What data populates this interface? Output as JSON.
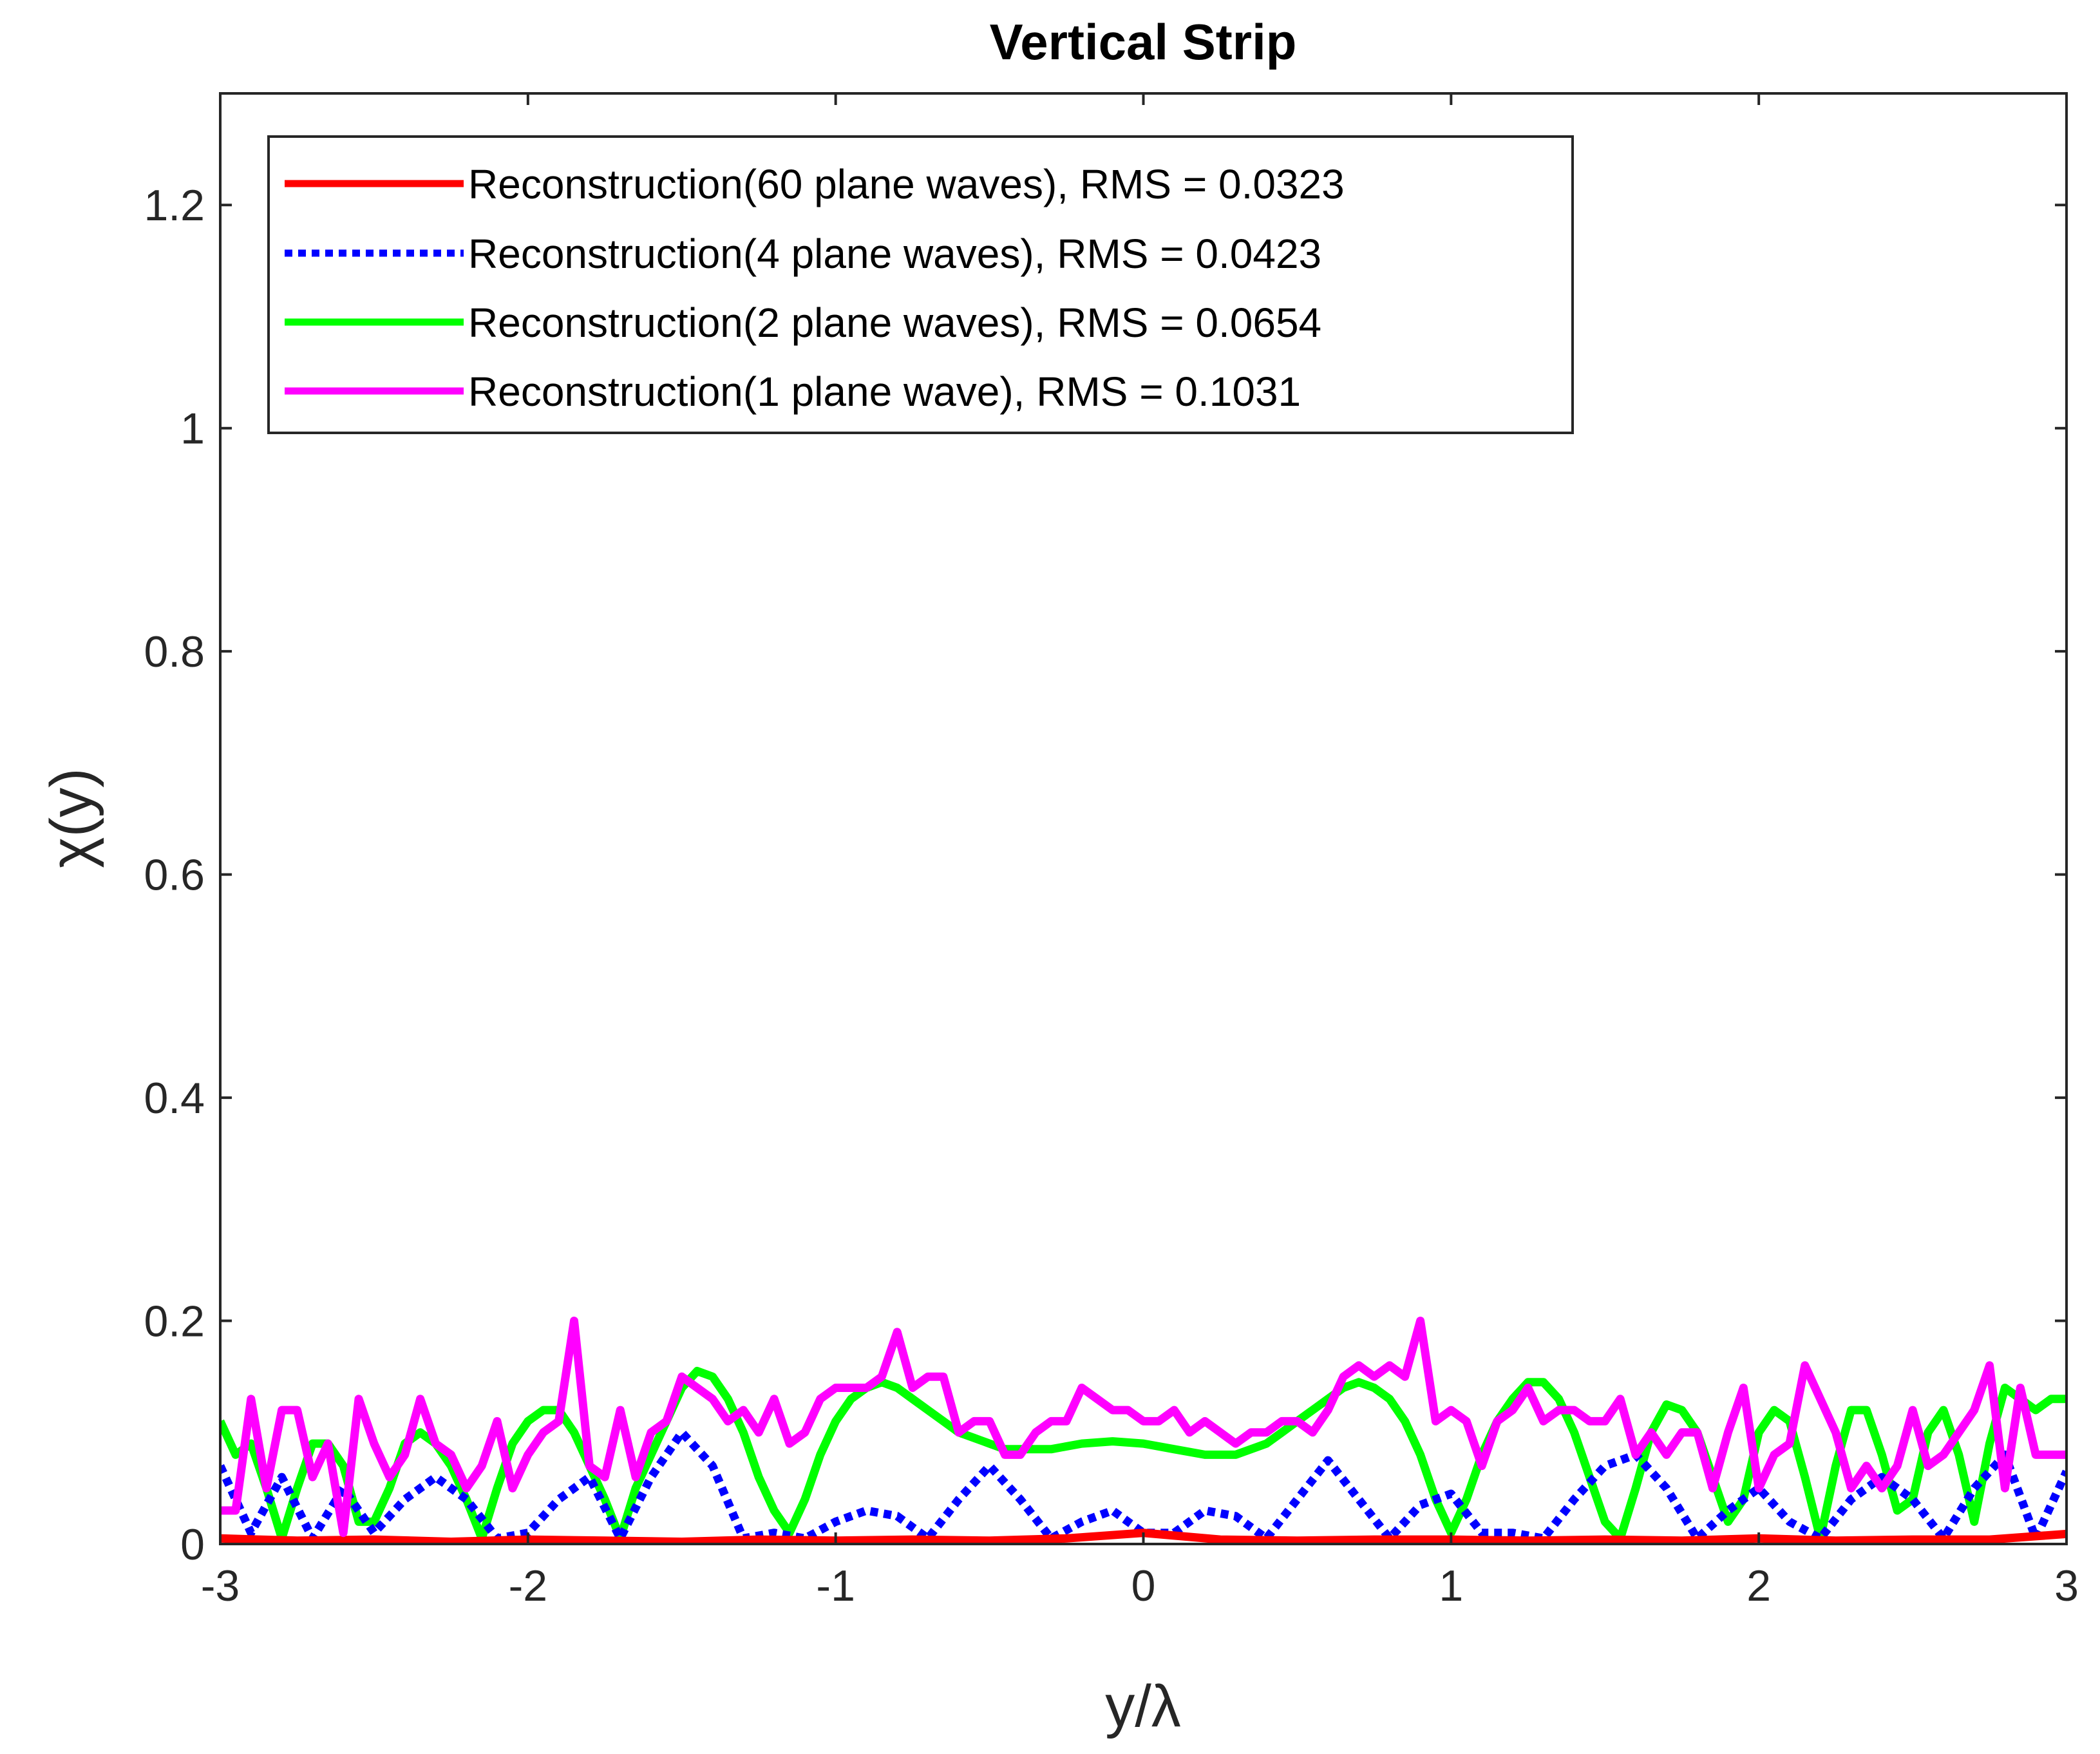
{
  "chart_data": {
    "type": "line",
    "title": "Vertical Strip",
    "xlabel": "y/λ",
    "ylabel": "χ(y)",
    "xlim": [
      -3,
      3
    ],
    "ylim": [
      0,
      1.3
    ],
    "xticks": [
      -3,
      -2,
      -1,
      0,
      1,
      2,
      3
    ],
    "xtick_labels": [
      "-3",
      "-2",
      "-1",
      "0",
      "1",
      "2",
      "3"
    ],
    "yticks": [
      0,
      0.2,
      0.4,
      0.6,
      0.8,
      1,
      1.2
    ],
    "ytick_labels": [
      "0",
      "0.2",
      "0.4",
      "0.6",
      "0.8",
      "1",
      "1.2"
    ],
    "grid": false,
    "legend_position": "top-left",
    "series": [
      {
        "name": "Reconstruction(60 plane waves), RMS = 0.0323",
        "color": "#ff0000",
        "style": "solid",
        "x": [
          -3,
          -2.75,
          -2.5,
          -2.25,
          -2,
          -1.75,
          -1.5,
          -1.25,
          -1,
          -0.75,
          -0.5,
          -0.25,
          0,
          0.25,
          0.5,
          0.75,
          1,
          1.25,
          1.5,
          1.75,
          2,
          2.25,
          2.5,
          2.75,
          3
        ],
        "y": [
          0.005,
          0.003,
          0.004,
          0.002,
          0.004,
          0.003,
          0.002,
          0.004,
          0.003,
          0.004,
          0.003,
          0.005,
          0.01,
          0.004,
          0.003,
          0.004,
          0.004,
          0.003,
          0.004,
          0.003,
          0.005,
          0.003,
          0.004,
          0.004,
          0.009
        ]
      },
      {
        "name": "Reconstruction(4 plane waves), RMS = 0.0423",
        "color": "#0000ff",
        "style": "dotted",
        "x": [
          -3,
          -2.9,
          -2.8,
          -2.7,
          -2.6,
          -2.5,
          -2.4,
          -2.3,
          -2.2,
          -2.1,
          -2.0,
          -1.9,
          -1.8,
          -1.7,
          -1.6,
          -1.5,
          -1.4,
          -1.3,
          -1.2,
          -1.1,
          -1.0,
          -0.9,
          -0.8,
          -0.7,
          -0.6,
          -0.5,
          -0.4,
          -0.3,
          -0.2,
          -0.1,
          0.0,
          0.1,
          0.2,
          0.3,
          0.4,
          0.5,
          0.6,
          0.7,
          0.8,
          0.9,
          1.0,
          1.1,
          1.2,
          1.3,
          1.4,
          1.5,
          1.6,
          1.7,
          1.8,
          1.9,
          2.0,
          2.1,
          2.2,
          2.3,
          2.4,
          2.5,
          2.6,
          2.7,
          2.8,
          2.9,
          3.0
        ],
        "y": [
          0.07,
          0.01,
          0.06,
          0.005,
          0.05,
          0.01,
          0.04,
          0.06,
          0.04,
          0.005,
          0.01,
          0.04,
          0.06,
          0.005,
          0.06,
          0.1,
          0.07,
          0.005,
          0.01,
          0.005,
          0.02,
          0.03,
          0.025,
          0.005,
          0.04,
          0.07,
          0.04,
          0.005,
          0.02,
          0.03,
          0.01,
          0.01,
          0.03,
          0.025,
          0.005,
          0.04,
          0.075,
          0.04,
          0.005,
          0.035,
          0.045,
          0.01,
          0.01,
          0.005,
          0.04,
          0.07,
          0.08,
          0.05,
          0.005,
          0.03,
          0.05,
          0.02,
          0.005,
          0.04,
          0.06,
          0.04,
          0.005,
          0.05,
          0.08,
          0.005,
          0.065
        ]
      },
      {
        "name": "Reconstruction(2 plane waves), RMS = 0.0654",
        "color": "#00ff00",
        "style": "solid",
        "x": [
          -3,
          -2.95,
          -2.9,
          -2.85,
          -2.8,
          -2.75,
          -2.7,
          -2.65,
          -2.6,
          -2.55,
          -2.5,
          -2.45,
          -2.4,
          -2.35,
          -2.3,
          -2.25,
          -2.2,
          -2.15,
          -2.1,
          -2.05,
          -2.0,
          -1.95,
          -1.9,
          -1.85,
          -1.8,
          -1.75,
          -1.7,
          -1.65,
          -1.6,
          -1.55,
          -1.5,
          -1.45,
          -1.4,
          -1.35,
          -1.3,
          -1.25,
          -1.2,
          -1.15,
          -1.1,
          -1.05,
          -1.0,
          -0.95,
          -0.9,
          -0.85,
          -0.8,
          -0.75,
          -0.7,
          -0.65,
          -0.6,
          -0.55,
          -0.5,
          -0.45,
          -0.4,
          -0.35,
          -0.3,
          -0.2,
          -0.1,
          0.0,
          0.1,
          0.2,
          0.3,
          0.35,
          0.4,
          0.45,
          0.5,
          0.55,
          0.6,
          0.65,
          0.7,
          0.75,
          0.8,
          0.85,
          0.9,
          0.95,
          1.0,
          1.05,
          1.1,
          1.15,
          1.2,
          1.25,
          1.3,
          1.35,
          1.4,
          1.45,
          1.5,
          1.55,
          1.6,
          1.65,
          1.7,
          1.75,
          1.8,
          1.85,
          1.9,
          1.95,
          2.0,
          2.05,
          2.1,
          2.15,
          2.2,
          2.25,
          2.3,
          2.35,
          2.4,
          2.45,
          2.5,
          2.55,
          2.6,
          2.65,
          2.7,
          2.75,
          2.8,
          2.85,
          2.9,
          2.95,
          3.0
        ],
        "y": [
          0.11,
          0.08,
          0.09,
          0.05,
          0.005,
          0.05,
          0.09,
          0.09,
          0.07,
          0.02,
          0.02,
          0.05,
          0.09,
          0.1,
          0.09,
          0.07,
          0.04,
          0.005,
          0.05,
          0.09,
          0.11,
          0.12,
          0.12,
          0.1,
          0.07,
          0.04,
          0.005,
          0.05,
          0.08,
          0.11,
          0.14,
          0.155,
          0.15,
          0.13,
          0.1,
          0.06,
          0.03,
          0.01,
          0.04,
          0.08,
          0.11,
          0.13,
          0.14,
          0.145,
          0.14,
          0.13,
          0.12,
          0.11,
          0.1,
          0.095,
          0.09,
          0.085,
          0.085,
          0.085,
          0.085,
          0.09,
          0.092,
          0.09,
          0.085,
          0.08,
          0.08,
          0.085,
          0.09,
          0.1,
          0.11,
          0.12,
          0.13,
          0.14,
          0.145,
          0.14,
          0.13,
          0.11,
          0.08,
          0.04,
          0.01,
          0.04,
          0.08,
          0.11,
          0.13,
          0.145,
          0.145,
          0.13,
          0.1,
          0.06,
          0.02,
          0.005,
          0.05,
          0.1,
          0.125,
          0.12,
          0.1,
          0.06,
          0.02,
          0.04,
          0.1,
          0.12,
          0.11,
          0.06,
          0.005,
          0.07,
          0.12,
          0.12,
          0.08,
          0.03,
          0.04,
          0.1,
          0.12,
          0.08,
          0.02,
          0.09,
          0.14,
          0.13,
          0.12,
          0.13,
          0.13
        ]
      },
      {
        "name": "Reconstruction(1 plane wave), RMS = 0.1031",
        "color": "#ff00ff",
        "style": "solid",
        "x": [
          -3,
          -2.95,
          -2.9,
          -2.85,
          -2.8,
          -2.75,
          -2.7,
          -2.65,
          -2.6,
          -2.55,
          -2.5,
          -2.45,
          -2.4,
          -2.35,
          -2.3,
          -2.25,
          -2.2,
          -2.15,
          -2.1,
          -2.05,
          -2.0,
          -1.95,
          -1.9,
          -1.85,
          -1.8,
          -1.75,
          -1.7,
          -1.65,
          -1.6,
          -1.55,
          -1.5,
          -1.45,
          -1.4,
          -1.35,
          -1.3,
          -1.25,
          -1.2,
          -1.15,
          -1.1,
          -1.05,
          -1.0,
          -0.95,
          -0.9,
          -0.85,
          -0.8,
          -0.75,
          -0.7,
          -0.65,
          -0.6,
          -0.55,
          -0.5,
          -0.45,
          -0.4,
          -0.35,
          -0.3,
          -0.25,
          -0.2,
          -0.15,
          -0.1,
          -0.05,
          0.0,
          0.05,
          0.1,
          0.15,
          0.2,
          0.25,
          0.3,
          0.35,
          0.4,
          0.45,
          0.5,
          0.55,
          0.6,
          0.65,
          0.7,
          0.75,
          0.8,
          0.85,
          0.9,
          0.95,
          1.0,
          1.05,
          1.1,
          1.15,
          1.2,
          1.25,
          1.3,
          1.35,
          1.4,
          1.45,
          1.5,
          1.55,
          1.6,
          1.65,
          1.7,
          1.75,
          1.8,
          1.85,
          1.9,
          1.95,
          2.0,
          2.05,
          2.1,
          2.15,
          2.2,
          2.25,
          2.3,
          2.35,
          2.4,
          2.45,
          2.5,
          2.55,
          2.6,
          2.65,
          2.7,
          2.75,
          2.8,
          2.85,
          2.9,
          2.95,
          3.0
        ],
        "y": [
          0.03,
          0.03,
          0.13,
          0.05,
          0.12,
          0.12,
          0.06,
          0.09,
          0.01,
          0.13,
          0.09,
          0.06,
          0.08,
          0.13,
          0.09,
          0.08,
          0.05,
          0.07,
          0.11,
          0.05,
          0.08,
          0.1,
          0.11,
          0.2,
          0.07,
          0.06,
          0.12,
          0.06,
          0.1,
          0.11,
          0.15,
          0.14,
          0.13,
          0.11,
          0.12,
          0.1,
          0.13,
          0.09,
          0.1,
          0.13,
          0.14,
          0.14,
          0.14,
          0.15,
          0.19,
          0.14,
          0.15,
          0.15,
          0.1,
          0.11,
          0.11,
          0.08,
          0.08,
          0.1,
          0.11,
          0.11,
          0.14,
          0.13,
          0.12,
          0.12,
          0.11,
          0.11,
          0.12,
          0.1,
          0.11,
          0.1,
          0.09,
          0.1,
          0.1,
          0.11,
          0.11,
          0.1,
          0.12,
          0.15,
          0.16,
          0.15,
          0.16,
          0.15,
          0.2,
          0.11,
          0.12,
          0.11,
          0.07,
          0.11,
          0.12,
          0.14,
          0.11,
          0.12,
          0.12,
          0.11,
          0.11,
          0.13,
          0.08,
          0.1,
          0.08,
          0.1,
          0.1,
          0.05,
          0.1,
          0.14,
          0.05,
          0.08,
          0.09,
          0.16,
          0.13,
          0.1,
          0.05,
          0.07,
          0.05,
          0.07,
          0.12,
          0.07,
          0.08,
          0.1,
          0.12,
          0.16,
          0.05,
          0.14,
          0.08,
          0.08,
          0.08
        ]
      }
    ]
  }
}
